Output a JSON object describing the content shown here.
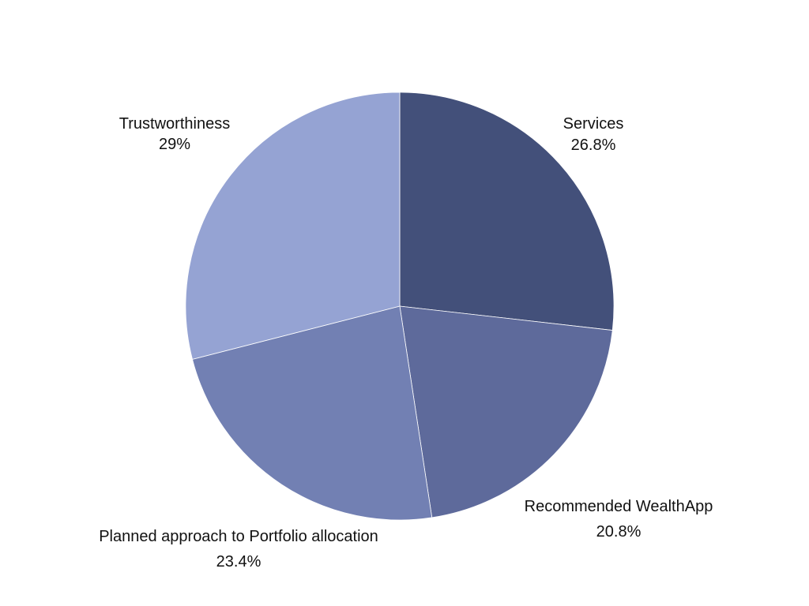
{
  "chart_data": {
    "type": "pie",
    "title": "",
    "start_angle_deg": 0,
    "direction": "clockwise",
    "slices": [
      {
        "label": "Services",
        "value": 26.8,
        "value_label": "26.8%",
        "color": "#43507a"
      },
      {
        "label": "Recommended WealthApp",
        "value": 20.8,
        "value_label": "20.8%",
        "color": "#5e6a9b"
      },
      {
        "label": "Planned approach to Portfolio allocation",
        "value": 23.4,
        "value_label": "23.4%",
        "color": "#7280b3"
      },
      {
        "label": "Trustworthiness",
        "value": 29,
        "value_label": "29%",
        "color": "#95a3d3"
      }
    ],
    "legend": "none"
  }
}
